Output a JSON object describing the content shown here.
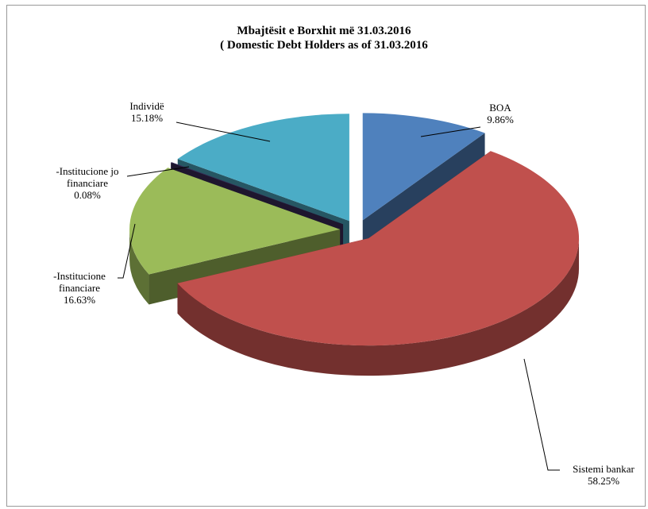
{
  "chart_data": {
    "type": "pie",
    "title": "Mbajtësit e Borxhit më  31.03.2016",
    "subtitle": "( Domestic Debt  Holders as of  31.03.2016",
    "categories": [
      "BOA",
      "Sistemi bankar",
      "-Institucione financiare",
      "-Institucione  jo financiare",
      "Individë"
    ],
    "values": [
      9.86,
      58.25,
      16.63,
      0.08,
      15.18
    ],
    "value_labels": [
      "9.86%",
      "58.25%",
      "16.63%",
      "0.08%",
      "15.18%"
    ],
    "colors": [
      "#4f81bd",
      "#c0504d",
      "#9bbb59",
      "#3b2d5c",
      "#4bacc6"
    ]
  }
}
